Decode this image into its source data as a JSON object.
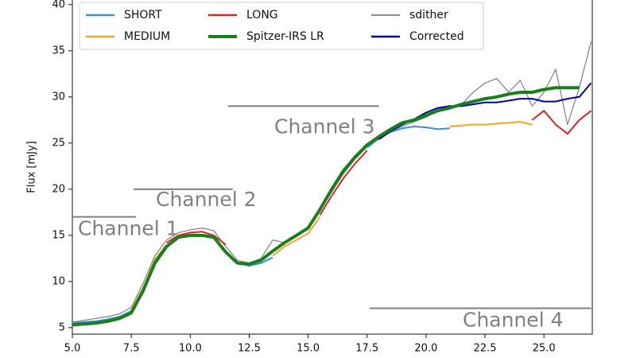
{
  "chart_data": {
    "type": "line",
    "y_label": "Flux [mJy]",
    "x": [
      5.0,
      5.5,
      6.0,
      6.5,
      7.0,
      7.5,
      8.0,
      8.5,
      9.0,
      9.5,
      10.0,
      10.5,
      11.0,
      11.5,
      12.0,
      12.5,
      13.0,
      13.5,
      14.0,
      14.5,
      15.0,
      15.5,
      16.0,
      16.5,
      17.0,
      17.5,
      18.0,
      18.5,
      19.0,
      19.5,
      20.0,
      20.5,
      21.0,
      21.5,
      22.0,
      22.5,
      23.0,
      23.5,
      24.0,
      24.5,
      25.0,
      25.5,
      26.0,
      26.5,
      27.0
    ],
    "series": [
      {
        "name": "SHORT",
        "color": "#3a8fd9",
        "values": [
          5.5,
          5.6,
          5.7,
          5.9,
          6.2,
          6.8,
          null,
          null,
          null,
          null,
          null,
          null,
          null,
          null,
          12.0,
          11.7,
          12.0,
          12.6,
          null,
          null,
          null,
          null,
          null,
          null,
          null,
          24.5,
          25.5,
          26.2,
          26.6,
          26.8,
          26.7,
          26.5,
          26.6,
          null,
          null,
          null,
          null,
          null,
          null,
          null,
          null,
          null,
          null,
          null,
          null
        ]
      },
      {
        "name": "MEDIUM",
        "color": "#f5a623",
        "values": [
          null,
          null,
          null,
          null,
          null,
          6.9,
          9.3,
          12.4,
          14.0,
          null,
          null,
          null,
          null,
          null,
          null,
          null,
          null,
          12.8,
          13.8,
          14.5,
          15.2,
          17.0,
          null,
          null,
          null,
          null,
          null,
          null,
          null,
          null,
          null,
          null,
          26.8,
          26.9,
          27.0,
          27.0,
          27.1,
          27.2,
          27.3,
          27.0,
          null,
          null,
          null,
          null,
          null
        ]
      },
      {
        "name": "LONG",
        "color": "#d62728",
        "values": [
          null,
          null,
          null,
          null,
          null,
          null,
          null,
          null,
          14.2,
          15.0,
          15.3,
          15.4,
          15.0,
          14.0,
          null,
          null,
          null,
          null,
          null,
          null,
          null,
          17.2,
          19.3,
          21.2,
          22.8,
          24.2,
          null,
          null,
          null,
          null,
          null,
          null,
          null,
          null,
          null,
          null,
          null,
          null,
          null,
          27.5,
          28.5,
          27.0,
          26.0,
          27.5,
          28.5
        ]
      },
      {
        "name": "Spitzer-IRS LR",
        "color": "#1a7f1a",
        "values": [
          5.3,
          5.4,
          5.5,
          5.7,
          6.0,
          6.6,
          9.0,
          12.0,
          13.8,
          14.8,
          15.0,
          15.0,
          14.8,
          13.2,
          12.0,
          11.9,
          12.3,
          13.3,
          14.2,
          15.0,
          15.8,
          17.8,
          20.0,
          22.0,
          23.5,
          24.8,
          25.7,
          26.5,
          27.2,
          27.5,
          28.0,
          28.5,
          28.8,
          29.2,
          29.5,
          29.8,
          30.0,
          30.3,
          30.5,
          30.5,
          30.8,
          31.0,
          31.0,
          31.0,
          null
        ]
      },
      {
        "name": "sdither",
        "color": "#808080",
        "values": [
          5.6,
          5.8,
          6.0,
          6.2,
          6.5,
          7.2,
          9.8,
          12.8,
          14.5,
          15.3,
          15.6,
          15.8,
          15.5,
          13.8,
          12.3,
          12.0,
          12.5,
          14.5,
          14.2,
          15.0,
          15.7,
          17.7,
          19.7,
          21.7,
          23.3,
          24.6,
          25.5,
          26.3,
          26.8,
          27.3,
          27.8,
          28.5,
          28.8,
          29.2,
          30.5,
          31.5,
          32.0,
          30.5,
          31.8,
          29.0,
          30.5,
          33.0,
          27.0,
          31.0,
          36.0
        ]
      },
      {
        "name": "Corrected",
        "color": "#0000aa",
        "values": [
          null,
          null,
          null,
          null,
          null,
          null,
          null,
          null,
          null,
          null,
          null,
          null,
          null,
          null,
          null,
          null,
          null,
          null,
          null,
          null,
          null,
          null,
          null,
          null,
          null,
          null,
          25.4,
          26.3,
          27.0,
          27.6,
          28.3,
          28.8,
          29.0,
          29.0,
          29.2,
          29.4,
          29.4,
          29.6,
          29.8,
          29.8,
          29.5,
          29.5,
          29.8,
          30.0,
          31.5
        ]
      }
    ],
    "annotations": [
      {
        "text": "Channel 1",
        "x": [
          5.0,
          7.7
        ],
        "y": 17.0
      },
      {
        "text": "Channel 2",
        "x": [
          7.6,
          11.8
        ],
        "y": 20.0
      },
      {
        "text": "Channel 3",
        "x": [
          11.6,
          18.0
        ],
        "y": 29.0
      },
      {
        "text": "Channel 4",
        "x": [
          17.6,
          27.0
        ],
        "y": 7.1
      }
    ],
    "xlim": [
      5.0,
      27.05
    ],
    "ylim": [
      4.3,
      40.5
    ],
    "xticks": [
      {
        "value": 5.0,
        "label": "5.0"
      },
      {
        "value": 7.5,
        "label": "7.5"
      },
      {
        "value": 10.0,
        "label": "10.0"
      },
      {
        "value": 12.5,
        "label": "12.5"
      },
      {
        "value": 15.0,
        "label": "15.0"
      },
      {
        "value": 17.5,
        "label": "17.5"
      },
      {
        "value": 20.0,
        "label": "20.0"
      },
      {
        "value": 22.5,
        "label": "22.5"
      },
      {
        "value": 25.0,
        "label": "25.0"
      }
    ],
    "yticks": [
      5,
      10,
      15,
      20,
      25,
      30,
      35,
      40
    ],
    "legend": "upper left"
  }
}
